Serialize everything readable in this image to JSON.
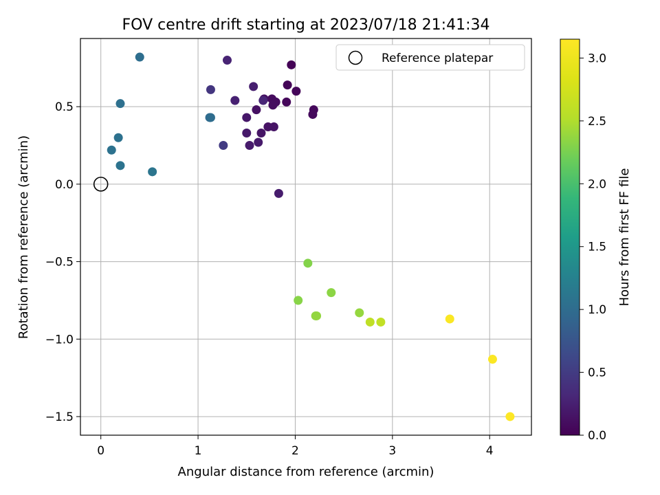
{
  "chart_data": {
    "type": "scatter",
    "title": "FOV centre drift starting at 2023/07/18 21:41:34",
    "xlabel": "Angular distance from reference (arcmin)",
    "ylabel": "Rotation from reference (arcmin)",
    "xlim": [
      -0.21,
      4.43
    ],
    "ylim": [
      -1.62,
      0.94
    ],
    "x_ticks": [
      0,
      1,
      2,
      3,
      4
    ],
    "x_tick_labels": [
      "0",
      "1",
      "2",
      "3",
      "4"
    ],
    "y_ticks": [
      -1.5,
      -1.0,
      -0.5,
      0.0,
      0.5
    ],
    "y_tick_labels": [
      "−1.5",
      "−1.0",
      "−0.5",
      "0.0",
      "0.5"
    ],
    "grid": true,
    "legend": {
      "placement": "top-right",
      "entries": [
        {
          "label": "Reference platepar",
          "marker": "open-circle"
        }
      ]
    },
    "colorbar": {
      "label": "Hours from first FF file",
      "colormap": "viridis",
      "range": [
        0.0,
        3.15
      ],
      "ticks": [
        0.0,
        0.5,
        1.0,
        1.5,
        2.0,
        2.5,
        3.0
      ],
      "tick_labels": [
        "0.0",
        "0.5",
        "1.0",
        "1.5",
        "2.0",
        "2.5",
        "3.0"
      ]
    },
    "reference_point": {
      "x": 0,
      "y": 0
    },
    "points": [
      {
        "x": 1.96,
        "y": 0.77,
        "t": 0.02
      },
      {
        "x": 1.92,
        "y": 0.64,
        "t": 0.03
      },
      {
        "x": 2.01,
        "y": 0.6,
        "t": 0.04
      },
      {
        "x": 1.91,
        "y": 0.53,
        "t": 0.05
      },
      {
        "x": 2.19,
        "y": 0.48,
        "t": 0.06
      },
      {
        "x": 2.18,
        "y": 0.45,
        "t": 0.07
      },
      {
        "x": 1.76,
        "y": 0.55,
        "t": 0.08
      },
      {
        "x": 1.8,
        "y": 0.53,
        "t": 0.09
      },
      {
        "x": 1.77,
        "y": 0.51,
        "t": 0.1
      },
      {
        "x": 1.68,
        "y": 0.55,
        "t": 0.12
      },
      {
        "x": 1.6,
        "y": 0.48,
        "t": 0.13
      },
      {
        "x": 1.72,
        "y": 0.37,
        "t": 0.14
      },
      {
        "x": 1.78,
        "y": 0.37,
        "t": 0.15
      },
      {
        "x": 1.65,
        "y": 0.33,
        "t": 0.16
      },
      {
        "x": 1.5,
        "y": 0.43,
        "t": 0.18
      },
      {
        "x": 1.5,
        "y": 0.33,
        "t": 0.19
      },
      {
        "x": 1.62,
        "y": 0.27,
        "t": 0.2
      },
      {
        "x": 1.53,
        "y": 0.25,
        "t": 0.21
      },
      {
        "x": 1.83,
        "y": -0.06,
        "t": 0.22
      },
      {
        "x": 1.57,
        "y": 0.63,
        "t": 0.24
      },
      {
        "x": 1.38,
        "y": 0.54,
        "t": 0.26
      },
      {
        "x": 1.3,
        "y": 0.8,
        "t": 0.28
      },
      {
        "x": 1.67,
        "y": 0.54,
        "t": 0.3
      },
      {
        "x": 1.13,
        "y": 0.61,
        "t": 0.45
      },
      {
        "x": 1.26,
        "y": 0.25,
        "t": 0.5
      },
      {
        "x": 1.12,
        "y": 0.43,
        "t": 0.98
      },
      {
        "x": 1.13,
        "y": 0.43,
        "t": 1.0
      },
      {
        "x": 0.4,
        "y": 0.82,
        "t": 1.02
      },
      {
        "x": 0.2,
        "y": 0.52,
        "t": 1.04
      },
      {
        "x": 0.18,
        "y": 0.3,
        "t": 1.05
      },
      {
        "x": 0.11,
        "y": 0.22,
        "t": 1.07
      },
      {
        "x": 0.2,
        "y": 0.12,
        "t": 1.08
      },
      {
        "x": 0.53,
        "y": 0.08,
        "t": 1.1
      },
      {
        "x": 2.13,
        "y": -0.51,
        "t": 2.3
      },
      {
        "x": 2.03,
        "y": -0.75,
        "t": 2.32
      },
      {
        "x": 2.37,
        "y": -0.7,
        "t": 2.34
      },
      {
        "x": 2.21,
        "y": -0.85,
        "t": 2.36
      },
      {
        "x": 2.22,
        "y": -0.85,
        "t": 2.37
      },
      {
        "x": 2.66,
        "y": -0.83,
        "t": 2.38
      },
      {
        "x": 2.77,
        "y": -0.89,
        "t": 2.6
      },
      {
        "x": 2.88,
        "y": -0.89,
        "t": 2.62
      },
      {
        "x": 3.59,
        "y": -0.87,
        "t": 3.12
      },
      {
        "x": 4.03,
        "y": -1.13,
        "t": 3.13
      },
      {
        "x": 4.21,
        "y": -1.5,
        "t": 3.15
      }
    ]
  }
}
